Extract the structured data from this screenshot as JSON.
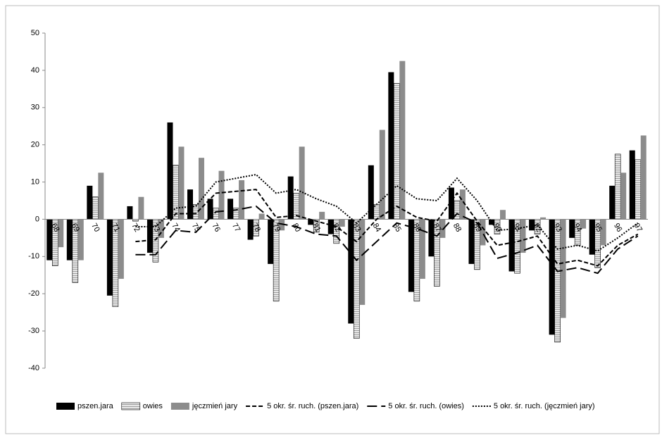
{
  "chart_data": {
    "type": "bar",
    "categories": [
      "68",
      "69",
      "70",
      "71",
      "72",
      "73",
      "74",
      "75",
      "76",
      "77",
      "78",
      "79",
      "80",
      "81",
      "82",
      "83",
      "84",
      "85",
      "86",
      "87",
      "88",
      "89",
      "90",
      "91",
      "92",
      "93",
      "94",
      "95",
      "96",
      "97"
    ],
    "series": [
      {
        "name": "pszen.jara",
        "type": "bar",
        "color": "#000000",
        "values": [
          -11,
          -11,
          9,
          -20.5,
          3.5,
          -9,
          26,
          8,
          5.5,
          5.5,
          -5.5,
          -12,
          11.5,
          -1.5,
          -4,
          -28,
          14.5,
          39.5,
          -19.5,
          -10,
          8.5,
          -12,
          -1.5,
          -14,
          -3,
          -31,
          -5,
          -9.5,
          9,
          18.5
        ]
      },
      {
        "name": "owies",
        "type": "bar",
        "color": "#d0d0d0",
        "hatched": true,
        "values": [
          -12.5,
          -17,
          6,
          -23.5,
          -0.5,
          -11.5,
          14.5,
          4,
          3,
          3,
          -4.5,
          -22,
          7,
          -3.5,
          -6.5,
          -32,
          4,
          36.5,
          -22,
          -18,
          5,
          -13.5,
          -4,
          -14.5,
          -4,
          -33,
          -7,
          -13,
          17.5,
          16
        ]
      },
      {
        "name": "jęczmień jary",
        "type": "bar",
        "color": "#8c8c8c",
        "values": [
          -7.5,
          -11,
          12.5,
          -16,
          6,
          -5,
          19.5,
          16.5,
          13,
          10.5,
          1.5,
          -3,
          19.5,
          2,
          -2,
          -23,
          24,
          42.5,
          -16,
          -5,
          8,
          -7,
          2.5,
          -9,
          0.5,
          -26.5,
          -2.5,
          -7,
          12.5,
          22.5
        ]
      },
      {
        "name": "5 okr. śr. ruch. (pszen.jara)",
        "type": "line",
        "color": "#000000",
        "line_style": "dashed",
        "values": [
          null,
          null,
          null,
          null,
          -6,
          -5.5,
          1.5,
          1.5,
          7,
          7.5,
          8,
          0.5,
          1,
          -0.5,
          -2,
          -6,
          0,
          3.5,
          0.5,
          -0.5,
          7,
          -0.5,
          -7,
          -6,
          -4.5,
          -12,
          -11,
          -12.5,
          -7,
          -4
        ]
      },
      {
        "name": "5 okr. śr. ruch. (owies)",
        "type": "line",
        "color": "#000000",
        "line_style": "long-dash-dot",
        "values": [
          null,
          null,
          null,
          null,
          -9.5,
          -9.5,
          -3,
          -3.5,
          2,
          2.5,
          3.5,
          -1,
          -2,
          -4,
          -4.5,
          -11,
          -6,
          -1,
          -2.5,
          -4.5,
          1.5,
          -1,
          -10.5,
          -9,
          -7,
          -14,
          -13,
          -14.5,
          -8,
          -4.5
        ]
      },
      {
        "name": "5 okr. śr. ruch. (jęczmień jary)",
        "type": "line",
        "color": "#000000",
        "line_style": "dotted",
        "values": [
          null,
          null,
          null,
          null,
          -2,
          -2,
          3,
          3.5,
          10,
          11,
          12,
          7,
          8,
          5.5,
          3.5,
          -1,
          4,
          9,
          5.5,
          5,
          11,
          5,
          -3,
          -2.5,
          -1.5,
          -8,
          -7,
          -8.5,
          -5,
          -1
        ]
      }
    ],
    "ylim": [
      -40,
      50
    ],
    "yticks": [
      -40,
      -30,
      -20,
      -10,
      0,
      10,
      20,
      30,
      40,
      50
    ],
    "grid": true,
    "legend": "bottom"
  }
}
